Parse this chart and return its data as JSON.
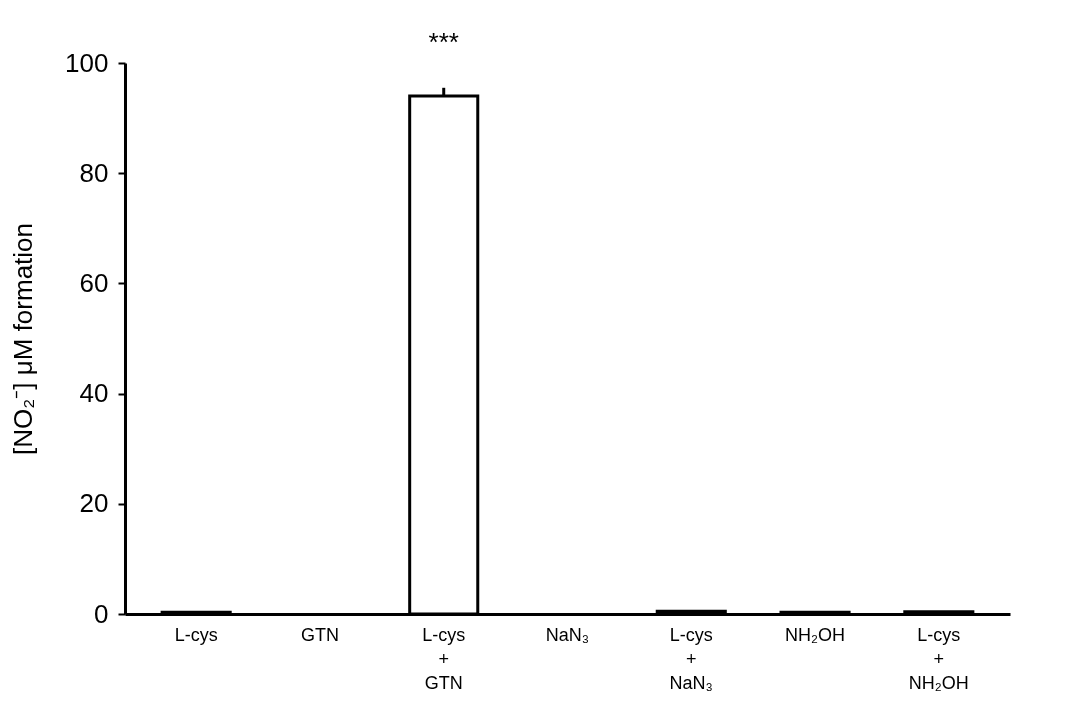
{
  "chart_data": {
    "type": "bar",
    "ylabel": "[NO₂⁻] μM formation",
    "categories": [
      "L-cys",
      "GTN",
      "L-cys\n+\nGTN",
      "NaN₃",
      "L-cys\n+\nNaN₃",
      "NH₂OH",
      "L-cys\n+\nNH₂OH"
    ],
    "values": [
      0.3,
      null,
      94,
      null,
      0.5,
      0.3,
      0.4
    ],
    "errors": [
      null,
      null,
      1.5,
      null,
      null,
      null,
      null
    ],
    "color": "#ffffff",
    "ylim": [
      0,
      100
    ],
    "yticks": [
      0,
      20,
      40,
      60,
      80,
      100
    ],
    "grid": false,
    "annotations": [
      {
        "text": "***",
        "x": "L-cys\n+\nGTN",
        "y": 94
      }
    ]
  }
}
